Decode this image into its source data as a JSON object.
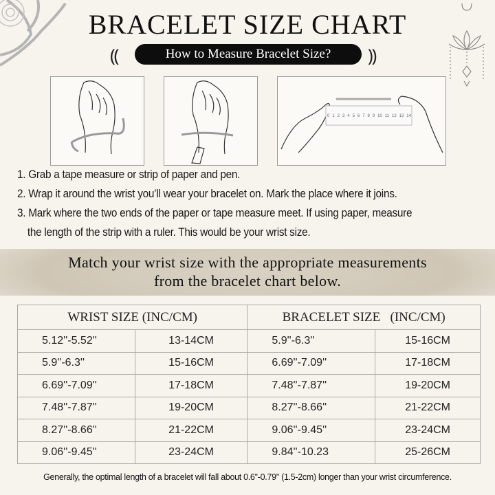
{
  "header": {
    "title": "BRACELET SIZE CHART",
    "subtitle": "How to Measure Bracelet Size?"
  },
  "illustrations": {
    "ruler_numbers": [
      "0",
      "1",
      "2",
      "3",
      "4",
      "5",
      "6",
      "7",
      "8",
      "9",
      "10",
      "11",
      "12",
      "13",
      "14"
    ]
  },
  "steps": [
    "1. Grab a tape measure or strip of paper and pen.",
    "2. Wrap it around the wrist you’ll wear your bracelet on. Mark the place where it joins.",
    "3. Mark where the two ends of the paper or tape measure meet. If using paper, measure",
    "the length of the strip with a ruler. This would be your wrist size."
  ],
  "banner": {
    "line1": "Match your wrist size with the appropriate measurements",
    "line2": "from the bracelet chart below."
  },
  "table": {
    "headers": [
      "WRIST SIZE (INC/CM)",
      "BRACELET SIZE   (INC/CM)"
    ],
    "rows": [
      [
        "5.12''-5.52''",
        "13-14CM",
        "5.9''-6.3''",
        "15-16CM"
      ],
      [
        "5.9''-6.3''",
        "15-16CM",
        "6.69''-7.09''",
        "17-18CM"
      ],
      [
        "6.69''-7.09''",
        "17-18CM",
        "7.48''-7.87''",
        "19-20CM"
      ],
      [
        "7.48''-7.87''",
        "19-20CM",
        "8.27''-8.66''",
        "21-22CM"
      ],
      [
        "8.27''-8.66''",
        "21-22CM",
        "9.06''-9.45''",
        "23-24CM"
      ],
      [
        "9.06''-9.45''",
        "23-24CM",
        "9.84''-10.23",
        "25-26CM"
      ]
    ]
  },
  "footnote": "Generally, the optimal length of a bracelet will fall about 0.6''-0.79'' (1.5-2cm) longer than your wrist circumference.",
  "colors": {
    "background": "#f7f4ee",
    "pill": "#0d0d0d",
    "border": "#a8a8a8",
    "ornament": "#b8b8b8"
  }
}
